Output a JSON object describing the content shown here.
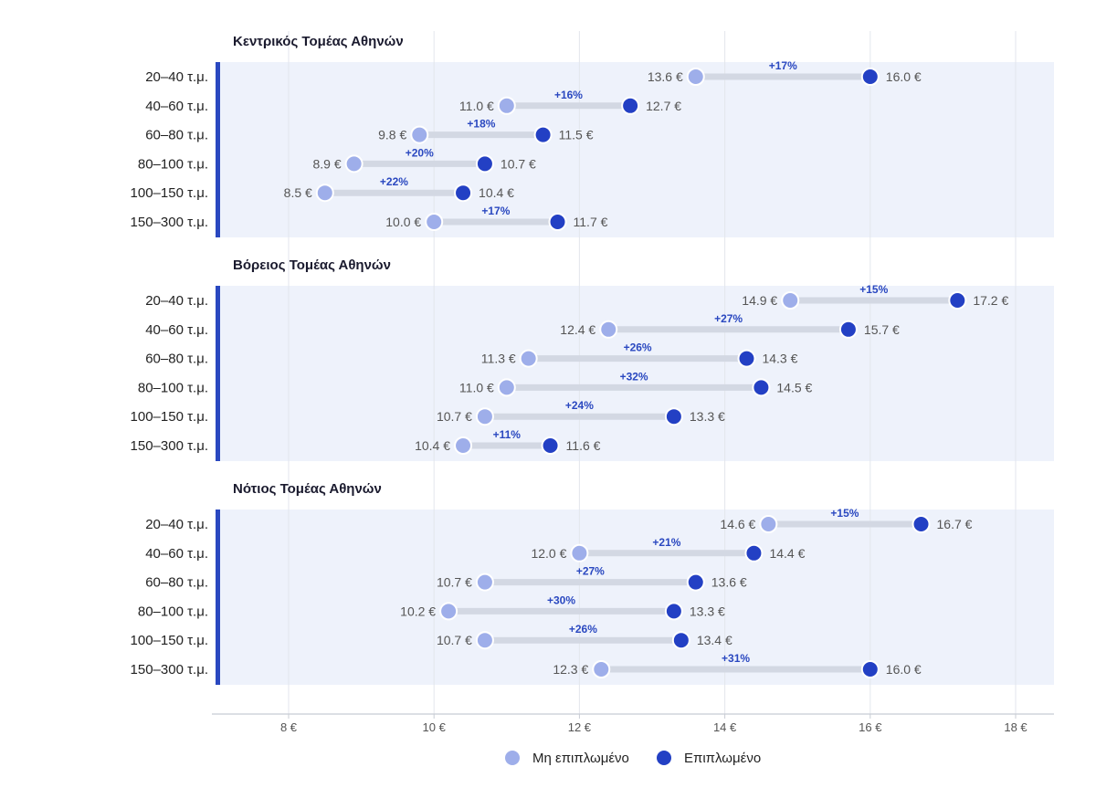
{
  "chart_data": {
    "type": "dumbbell",
    "x_ticks": [
      8,
      10,
      12,
      14,
      16,
      18
    ],
    "tick_suffix": " €",
    "value_suffix": " €",
    "xlim": [
      7,
      18.5
    ],
    "grid": true,
    "legend_position": "bottom-center",
    "colors": {
      "unfurnished": "#9eaeea",
      "furnished": "#2340c4",
      "band": "#eef2fb",
      "accent": "#2a48c0",
      "connector": "#d3d8e3"
    },
    "series": [
      {
        "name": "Μη επιπλωμένο",
        "key": "unfurnished"
      },
      {
        "name": "Επιπλωμένο",
        "key": "furnished"
      }
    ],
    "panels": [
      {
        "title": "Κεντρικός Τομέας Αθηνών",
        "rows": [
          {
            "category": "20–40 τ.μ.",
            "unfurnished": 13.6,
            "furnished": 16.0,
            "label_unf": "13.6 €",
            "label_fur": "16.0 €",
            "change": "+17%"
          },
          {
            "category": "40–60 τ.μ.",
            "unfurnished": 11.0,
            "furnished": 12.7,
            "label_unf": "11.0 €",
            "label_fur": "12.7 €",
            "change": "+16%"
          },
          {
            "category": "60–80 τ.μ.",
            "unfurnished": 9.8,
            "furnished": 11.5,
            "label_unf": "9.8 €",
            "label_fur": "11.5 €",
            "change": "+18%"
          },
          {
            "category": "80–100 τ.μ.",
            "unfurnished": 8.9,
            "furnished": 10.7,
            "label_unf": "8.9 €",
            "label_fur": "10.7 €",
            "change": "+20%"
          },
          {
            "category": "100–150 τ.μ.",
            "unfurnished": 8.5,
            "furnished": 10.4,
            "label_unf": "8.5 €",
            "label_fur": "10.4 €",
            "change": "+22%"
          },
          {
            "category": "150–300 τ.μ.",
            "unfurnished": 10.0,
            "furnished": 11.7,
            "label_unf": "10.0 €",
            "label_fur": "11.7 €",
            "change": "+17%"
          }
        ]
      },
      {
        "title": "Βόρειος Τομέας Αθηνών",
        "rows": [
          {
            "category": "20–40 τ.μ.",
            "unfurnished": 14.9,
            "furnished": 17.2,
            "label_unf": "14.9 €",
            "label_fur": "17.2 €",
            "change": "+15%"
          },
          {
            "category": "40–60 τ.μ.",
            "unfurnished": 12.4,
            "furnished": 15.7,
            "label_unf": "12.4 €",
            "label_fur": "15.7 €",
            "change": "+27%"
          },
          {
            "category": "60–80 τ.μ.",
            "unfurnished": 11.3,
            "furnished": 14.3,
            "label_unf": "11.3 €",
            "label_fur": "14.3 €",
            "change": "+26%"
          },
          {
            "category": "80–100 τ.μ.",
            "unfurnished": 11.0,
            "furnished": 14.5,
            "label_unf": "11.0 €",
            "label_fur": "14.5 €",
            "change": "+32%"
          },
          {
            "category": "100–150 τ.μ.",
            "unfurnished": 10.7,
            "furnished": 13.3,
            "label_unf": "10.7 €",
            "label_fur": "13.3 €",
            "change": "+24%"
          },
          {
            "category": "150–300 τ.μ.",
            "unfurnished": 10.4,
            "furnished": 11.6,
            "label_unf": "10.4 €",
            "label_fur": "11.6 €",
            "change": "+11%"
          }
        ]
      },
      {
        "title": "Νότιος Τομέας Αθηνών",
        "rows": [
          {
            "category": "20–40 τ.μ.",
            "unfurnished": 14.6,
            "furnished": 16.7,
            "label_unf": "14.6 €",
            "label_fur": "16.7 €",
            "change": "+15%"
          },
          {
            "category": "40–60 τ.μ.",
            "unfurnished": 12.0,
            "furnished": 14.4,
            "label_unf": "12.0 €",
            "label_fur": "14.4 €",
            "change": "+21%"
          },
          {
            "category": "60–80 τ.μ.",
            "unfurnished": 10.7,
            "furnished": 13.6,
            "label_unf": "10.7 €",
            "label_fur": "13.6 €",
            "change": "+27%"
          },
          {
            "category": "80–100 τ.μ.",
            "unfurnished": 10.2,
            "furnished": 13.3,
            "label_unf": "10.2 €",
            "label_fur": "13.3 €",
            "change": "+30%"
          },
          {
            "category": "100–150 τ.μ.",
            "unfurnished": 10.7,
            "furnished": 13.4,
            "label_unf": "10.7 €",
            "label_fur": "13.4 €",
            "change": "+26%"
          },
          {
            "category": "150–300 τ.μ.",
            "unfurnished": 12.3,
            "furnished": 16.0,
            "label_unf": "12.3 €",
            "label_fur": "16.0 €",
            "change": "+31%"
          }
        ]
      }
    ]
  }
}
